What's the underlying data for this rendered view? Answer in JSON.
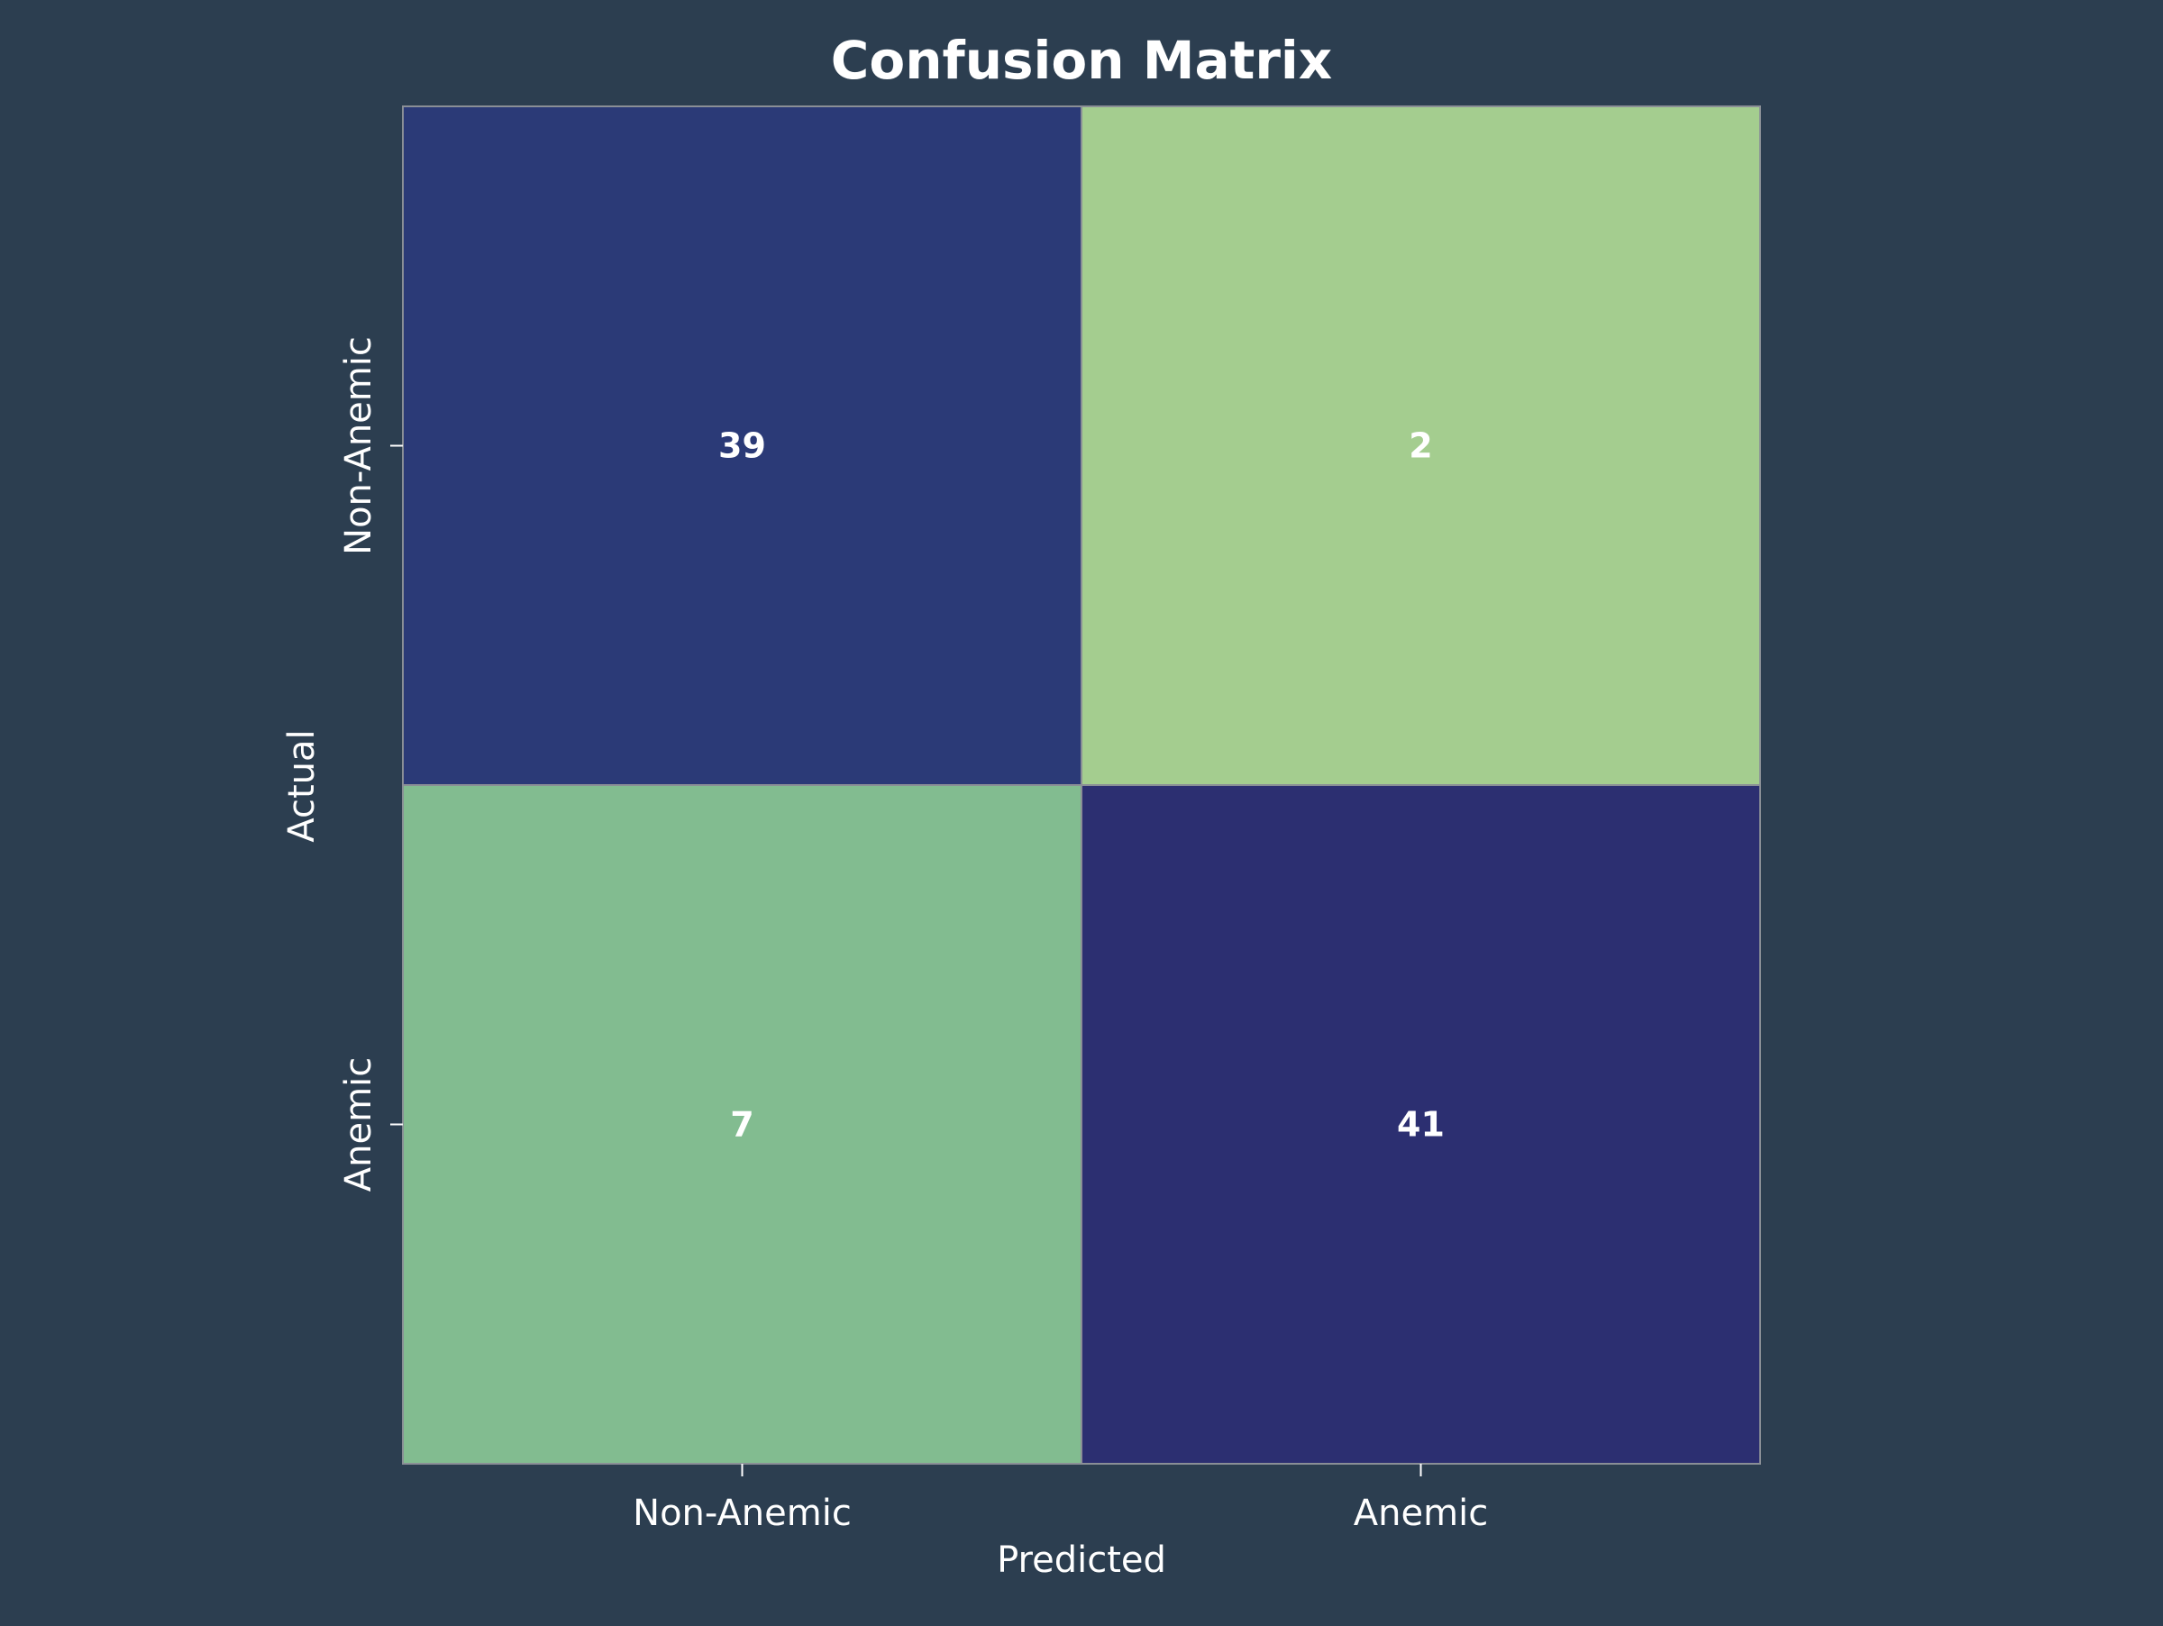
{
  "chart_data": {
    "type": "heatmap",
    "title": "Confusion Matrix",
    "xlabel": "Predicted",
    "ylabel": "Actual",
    "x_categories": [
      "Non-Anemic",
      "Anemic"
    ],
    "y_categories": [
      "Non-Anemic",
      "Anemic"
    ],
    "values": [
      [
        39,
        2
      ],
      [
        7,
        41
      ]
    ],
    "colormap": "crest",
    "cell_colors": [
      [
        "#2b3a77",
        "#a4cd8f"
      ],
      [
        "#82bc90",
        "#2c2f71"
      ]
    ],
    "colorbar": false,
    "grid": false
  },
  "colors": {
    "background": "#2c3e50",
    "text": "#ffffff",
    "cell_border": "#8a8f96"
  }
}
